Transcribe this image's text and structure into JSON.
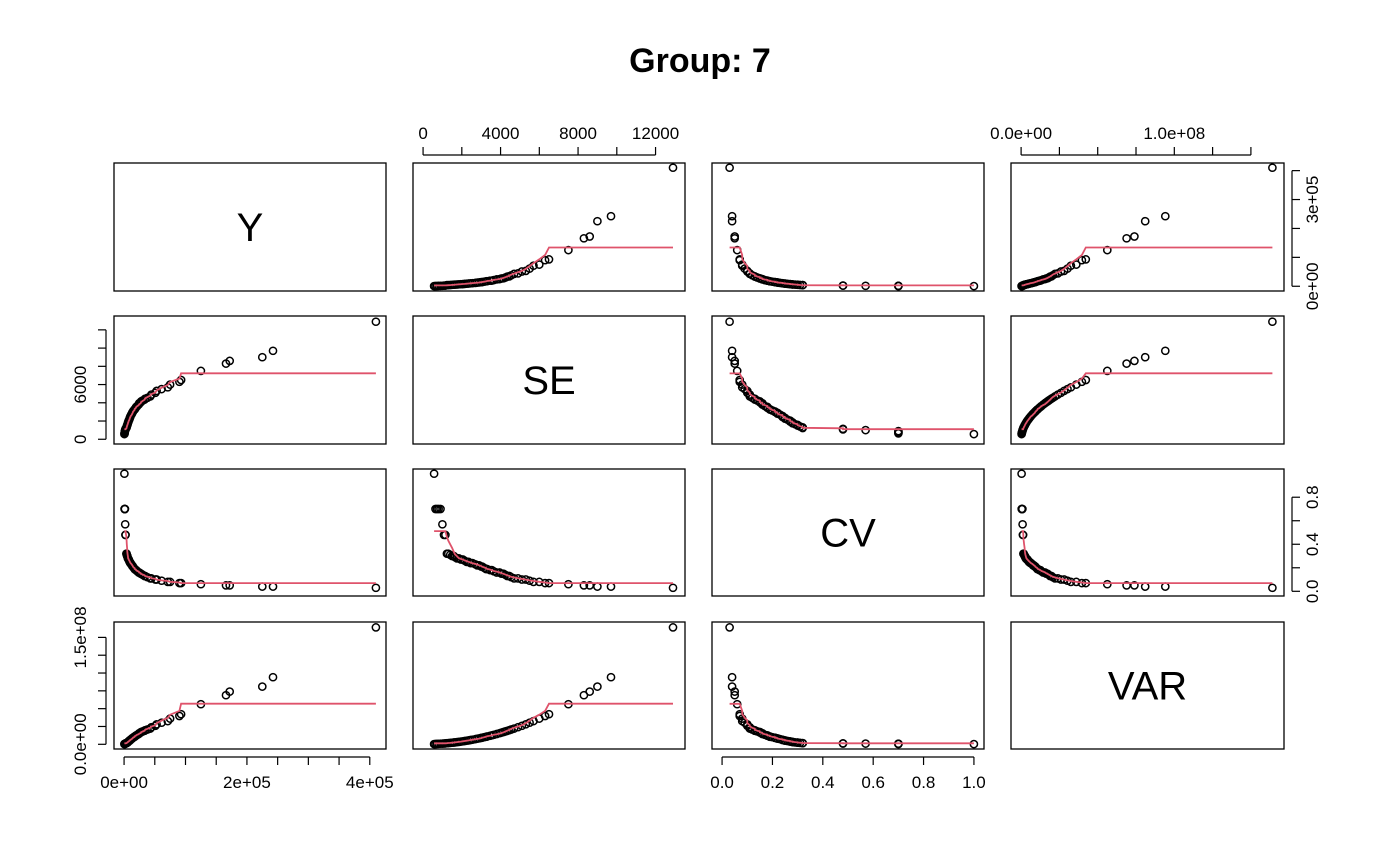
{
  "chart_data": {
    "type": "scatter-matrix",
    "title": "Group: 7",
    "variables": [
      "Y",
      "SE",
      "CV",
      "VAR"
    ],
    "smoother_color": "#DF536B",
    "point_color": "#000000",
    "ranges": {
      "Y": [
        0,
        410000
      ],
      "SE": [
        0,
        13000
      ],
      "CV": [
        0.0,
        1.0
      ],
      "VAR": [
        0,
        165000000
      ]
    },
    "axes": {
      "top": [
        {
          "variable": "SE",
          "ticks": [
            0,
            2000,
            4000,
            6000,
            8000,
            10000,
            12000
          ],
          "labels": [
            "0",
            "",
            "4000",
            "",
            "8000",
            "",
            "12000"
          ]
        },
        {
          "variable": "VAR",
          "ticks": [
            0,
            25000000,
            50000000,
            75000000,
            100000000,
            125000000,
            150000000
          ],
          "labels": [
            "0.0e+00",
            "",
            "",
            "",
            "1.0e+08",
            "",
            ""
          ]
        }
      ],
      "bottom": [
        {
          "variable": "Y",
          "ticks": [
            0,
            50000,
            100000,
            150000,
            200000,
            250000,
            300000,
            350000,
            400000
          ],
          "labels": [
            "0e+00",
            "",
            "",
            "",
            "2e+05",
            "",
            "",
            "",
            "4e+05"
          ]
        },
        {
          "variable": "CV",
          "ticks": [
            0.0,
            0.2,
            0.4,
            0.6,
            0.8,
            1.0
          ],
          "labels": [
            "0.0",
            "0.2",
            "0.4",
            "0.6",
            "0.8",
            "1.0"
          ]
        }
      ],
      "left": [
        {
          "variable": "SE",
          "ticks": [
            0,
            2000,
            4000,
            6000,
            8000,
            10000,
            12000
          ],
          "labels": [
            "0",
            "",
            "",
            "6000",
            "",
            "",
            ""
          ]
        },
        {
          "variable": "VAR",
          "ticks": [
            0,
            25000000,
            50000000,
            75000000,
            100000000,
            125000000,
            150000000
          ],
          "labels": [
            "0.0e+00",
            "",
            "",
            "",
            "",
            "",
            "1.5e+08"
          ]
        }
      ],
      "right": [
        {
          "variable": "Y",
          "ticks": [
            0,
            100000,
            200000,
            300000,
            400000
          ],
          "labels": [
            "0e+00",
            "",
            "",
            "3e+05",
            ""
          ]
        },
        {
          "variable": "CV",
          "ticks": [
            0.0,
            0.2,
            0.4,
            0.6,
            0.8
          ],
          "labels": [
            "0.0",
            "",
            "0.4",
            "",
            "0.8"
          ]
        }
      ]
    },
    "observations": {
      "SE": [
        570,
        640,
        720,
        800,
        900,
        1000,
        1080,
        1150,
        1230,
        1300,
        1400,
        1500,
        1580,
        1650,
        1750,
        1850,
        1950,
        2050,
        2150,
        2250,
        2350,
        2450,
        2550,
        2700,
        2800,
        2900,
        3000,
        3050,
        3150,
        3250,
        3300,
        3450,
        3550,
        3650,
        3800,
        3950,
        4050,
        4150,
        4250,
        4350,
        4450,
        4550,
        4700,
        4900,
        5100,
        5300,
        5500,
        5700,
        6000,
        6300,
        6500,
        7500,
        8300,
        8600,
        9000,
        9700,
        12900
      ],
      "CV": [
        0.03,
        0.04,
        0.05,
        0.06,
        0.07,
        0.08,
        0.09,
        0.1,
        0.11,
        0.12,
        0.13,
        0.14,
        0.15,
        0.16,
        0.17,
        0.18,
        0.19,
        0.2,
        0.21,
        0.22,
        0.23,
        0.24,
        0.25,
        0.26,
        0.27,
        0.28,
        0.29,
        0.3,
        0.31,
        0.32,
        0.48,
        0.57,
        0.7,
        0.7,
        1.0
      ]
    },
    "x_range_padding": 0.04
  }
}
